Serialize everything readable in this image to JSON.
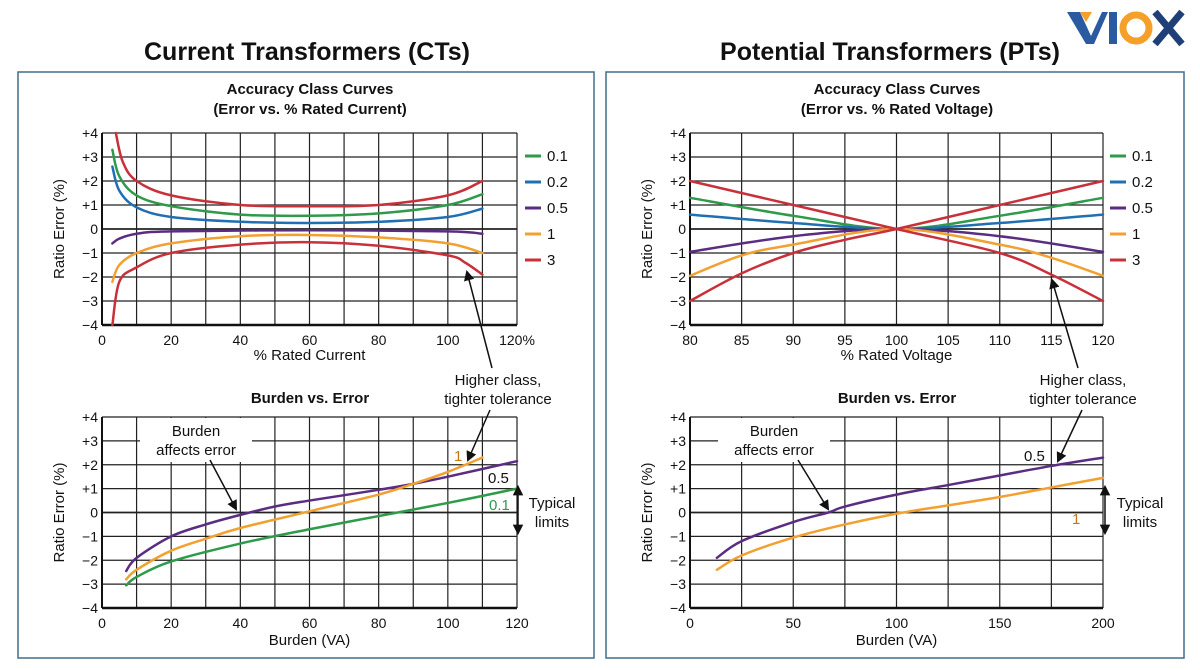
{
  "brand": {
    "logo_text": "VIOX",
    "colors": {
      "blue": "#2a5aa0",
      "orange": "#f5a029",
      "dark": "#1f3f78"
    }
  },
  "panels": [
    {
      "title": "Current Transformers (CTs)"
    },
    {
      "title": "Potential Transformers (PTs)"
    }
  ],
  "colors": {
    "panel_border": "#3f6f8e",
    "grid": "#222222",
    "0.1": "#2e9a4a",
    "0.2": "#1f6fb2",
    "0.5": "#5b2d82",
    "1": "#f2a030",
    "3": "#c8313a"
  },
  "annotations": {
    "ct_higher_class": [
      "Higher class,",
      "tighter tolerance"
    ],
    "ct_burden_affects": [
      "Burden",
      "affects error"
    ],
    "ct_typical_limits": [
      "Typical",
      "limits"
    ],
    "ct_label_1": "1",
    "ct_label_05": "0.5",
    "ct_label_01": "0.1",
    "pt_higher_class": [
      "Higher class,",
      "tighter tolerance"
    ],
    "pt_burden_affects": [
      "Burden",
      "affects error"
    ],
    "pt_typical_limits": [
      "Typical",
      "limits"
    ],
    "pt_label_05": "0.5",
    "pt_label_1": "1"
  },
  "chart_data": [
    {
      "type": "line",
      "title": [
        "Accuracy Class Curves",
        "(Error vs. % Rated Current)"
      ],
      "xlabel": "% Rated Current",
      "ylabel": "Ratio Error (%)",
      "xlim": [
        0,
        120
      ],
      "ylim": [
        -4,
        4
      ],
      "xgrid": 10,
      "ygrid": 1,
      "grid": true,
      "legend": "right",
      "xticks": [
        [
          0,
          "0"
        ],
        [
          20,
          "20"
        ],
        [
          40,
          "40"
        ],
        [
          60,
          "60"
        ],
        [
          80,
          "80"
        ],
        [
          100,
          "100"
        ],
        [
          120,
          "120%"
        ]
      ],
      "yticks": [
        [
          4,
          "+4"
        ],
        [
          3,
          "+3"
        ],
        [
          2,
          "+2"
        ],
        [
          1,
          "+1"
        ],
        [
          0,
          "0"
        ],
        [
          -1,
          "−1"
        ],
        [
          -2,
          "−2"
        ],
        [
          -3,
          "−3"
        ],
        [
          -4,
          "−4"
        ]
      ],
      "series": [
        {
          "name": "0.1",
          "color": "#2e9a4a",
          "curves": [
            [
              [
                3,
                3.3
              ],
              [
                5,
                2.2
              ],
              [
                10,
                1.4
              ],
              [
                20,
                0.95
              ],
              [
                40,
                0.6
              ],
              [
                60,
                0.55
              ],
              [
                80,
                0.65
              ],
              [
                100,
                1.0
              ],
              [
                110,
                1.45
              ]
            ]
          ]
        },
        {
          "name": "0.2",
          "color": "#1f6fb2",
          "curves": [
            [
              [
                3,
                2.6
              ],
              [
                5,
                1.6
              ],
              [
                10,
                0.9
              ],
              [
                20,
                0.5
              ],
              [
                40,
                0.3
              ],
              [
                60,
                0.25
              ],
              [
                80,
                0.3
              ],
              [
                100,
                0.5
              ],
              [
                110,
                0.85
              ]
            ]
          ]
        },
        {
          "name": "0.5",
          "color": "#5b2d82",
          "curves": [
            [
              [
                3,
                -0.6
              ],
              [
                5,
                -0.4
              ],
              [
                10,
                -0.2
              ],
              [
                20,
                -0.1
              ],
              [
                60,
                -0.05
              ],
              [
                100,
                -0.1
              ],
              [
                110,
                -0.2
              ]
            ]
          ]
        },
        {
          "name": "1",
          "color": "#f2a030",
          "curves": [
            [
              [
                3,
                -2.2
              ],
              [
                5,
                -1.5
              ],
              [
                10,
                -1.0
              ],
              [
                20,
                -0.6
              ],
              [
                40,
                -0.3
              ],
              [
                60,
                -0.25
              ],
              [
                80,
                -0.35
              ],
              [
                100,
                -0.6
              ],
              [
                110,
                -1.0
              ]
            ]
          ]
        },
        {
          "name": "3",
          "color": "#c8313a",
          "curves": [
            [
              [
                4,
                4
              ],
              [
                6,
                2.8
              ],
              [
                10,
                2.0
              ],
              [
                20,
                1.4
              ],
              [
                40,
                1.0
              ],
              [
                60,
                0.95
              ],
              [
                80,
                1.0
              ],
              [
                100,
                1.4
              ],
              [
                110,
                2.0
              ]
            ],
            [
              [
                3,
                -4
              ],
              [
                5,
                -2.2
              ],
              [
                10,
                -1.6
              ],
              [
                20,
                -1.0
              ],
              [
                40,
                -0.65
              ],
              [
                60,
                -0.55
              ],
              [
                80,
                -0.7
              ],
              [
                100,
                -1.1
              ],
              [
                105,
                -1.4
              ],
              [
                110,
                -1.9
              ]
            ]
          ]
        }
      ]
    },
    {
      "type": "line",
      "title": [
        "Burden vs. Error"
      ],
      "xlabel": "Burden (VA)",
      "ylabel": "Ratio Error (%)",
      "xlim": [
        0,
        120
      ],
      "ylim": [
        -4,
        4
      ],
      "xgrid": 10,
      "ygrid": 1,
      "grid": true,
      "legend": "none",
      "xticks": [
        [
          0,
          "0"
        ],
        [
          20,
          "20"
        ],
        [
          40,
          "40"
        ],
        [
          60,
          "60"
        ],
        [
          80,
          "80"
        ],
        [
          100,
          "100"
        ],
        [
          120,
          "120"
        ]
      ],
      "yticks": [
        [
          4,
          "+4"
        ],
        [
          3,
          "+3"
        ],
        [
          2,
          "+2"
        ],
        [
          1,
          "+1"
        ],
        [
          0,
          "0"
        ],
        [
          -1,
          "−1"
        ],
        [
          -2,
          "−2"
        ],
        [
          -3,
          "−3"
        ],
        [
          -4,
          "−4"
        ]
      ],
      "series": [
        {
          "name": "0.5",
          "color": "#5b2d82",
          "curves": [
            [
              [
                7,
                -2.45
              ],
              [
                10,
                -1.9
              ],
              [
                20,
                -1.0
              ],
              [
                30,
                -0.5
              ],
              [
                40,
                -0.1
              ],
              [
                50,
                0.25
              ],
              [
                60,
                0.5
              ],
              [
                80,
                0.95
              ],
              [
                90,
                1.2
              ],
              [
                100,
                1.5
              ],
              [
                120,
                2.15
              ]
            ]
          ]
        },
        {
          "name": "1",
          "color": "#f2a030",
          "curves": [
            [
              [
                7,
                -2.8
              ],
              [
                10,
                -2.4
              ],
              [
                20,
                -1.6
              ],
              [
                30,
                -1.1
              ],
              [
                40,
                -0.65
              ],
              [
                60,
                0.05
              ],
              [
                80,
                0.75
              ],
              [
                90,
                1.2
              ],
              [
                100,
                1.7
              ],
              [
                110,
                2.3
              ]
            ]
          ]
        },
        {
          "name": "0.1",
          "color": "#2e9a4a",
          "curves": [
            [
              [
                7,
                -3.05
              ],
              [
                10,
                -2.7
              ],
              [
                20,
                -2.05
              ],
              [
                40,
                -1.3
              ],
              [
                60,
                -0.7
              ],
              [
                80,
                -0.15
              ],
              [
                100,
                0.4
              ],
              [
                120,
                1.0
              ]
            ]
          ]
        }
      ]
    },
    {
      "type": "line",
      "title": [
        "Accuracy Class Curves",
        "(Error vs. % Rated Voltage)"
      ],
      "xlabel": "% Rated Voltage",
      "ylabel": "Ratio Error (%)",
      "xlim": [
        80,
        120
      ],
      "ylim": [
        -4,
        4
      ],
      "xgrid": 5,
      "ygrid": 1,
      "grid": true,
      "legend": "right",
      "xticks": [
        [
          80,
          "80"
        ],
        [
          85,
          "85"
        ],
        [
          90,
          "90"
        ],
        [
          95,
          "95"
        ],
        [
          100,
          "100"
        ],
        [
          105,
          "105"
        ],
        [
          110,
          "110"
        ],
        [
          115,
          "115"
        ],
        [
          120,
          "120"
        ]
      ],
      "yticks": [
        [
          4,
          "+4"
        ],
        [
          3,
          "+3"
        ],
        [
          2,
          "+2"
        ],
        [
          1,
          "+1"
        ],
        [
          0,
          "0"
        ],
        [
          -1,
          "−1"
        ],
        [
          -2,
          "−2"
        ],
        [
          -3,
          "−3"
        ],
        [
          -4,
          "−4"
        ]
      ],
      "series": [
        {
          "name": "0.1",
          "color": "#2e9a4a",
          "curves": [
            [
              [
                80,
                1.3
              ],
              [
                90,
                0.55
              ],
              [
                100,
                0
              ],
              [
                110,
                0.55
              ],
              [
                120,
                1.3
              ]
            ]
          ]
        },
        {
          "name": "0.2",
          "color": "#1f6fb2",
          "curves": [
            [
              [
                80,
                0.6
              ],
              [
                90,
                0.25
              ],
              [
                100,
                0
              ],
              [
                110,
                0.25
              ],
              [
                120,
                0.6
              ]
            ]
          ]
        },
        {
          "name": "0.5",
          "color": "#5b2d82",
          "curves": [
            [
              [
                80,
                -0.95
              ],
              [
                90,
                -0.3
              ],
              [
                100,
                0
              ],
              [
                110,
                -0.3
              ],
              [
                120,
                -0.95
              ]
            ]
          ]
        },
        {
          "name": "1",
          "color": "#f2a030",
          "curves": [
            [
              [
                80,
                -1.95
              ],
              [
                85,
                -1.1
              ],
              [
                90,
                -0.65
              ],
              [
                100,
                0
              ],
              [
                110,
                -0.65
              ],
              [
                115,
                -1.2
              ],
              [
                120,
                -1.95
              ]
            ]
          ]
        },
        {
          "name": "3",
          "color": "#c8313a",
          "curves": [
            [
              [
                80,
                2
              ],
              [
                90,
                1
              ],
              [
                100,
                0
              ],
              [
                110,
                -1
              ],
              [
                115,
                -1.9
              ],
              [
                120,
                -3
              ]
            ],
            [
              [
                80,
                -3
              ],
              [
                85,
                -1.85
              ],
              [
                90,
                -1
              ],
              [
                95,
                -0.45
              ],
              [
                100,
                0
              ],
              [
                110,
                1
              ],
              [
                120,
                2
              ]
            ]
          ]
        }
      ]
    },
    {
      "type": "line",
      "title": [
        "Burden vs. Error"
      ],
      "xlabel": "Burden (VA)",
      "ylabel": "Ratio Error (%)",
      "xlim": [
        0,
        200
      ],
      "ylim": [
        -4,
        4
      ],
      "xgrid": 25,
      "ygrid": 1,
      "grid": true,
      "legend": "none",
      "xticks": [
        [
          0,
          "0"
        ],
        [
          50,
          "50"
        ],
        [
          100,
          "100"
        ],
        [
          150,
          "150"
        ],
        [
          200,
          "200"
        ]
      ],
      "yticks": [
        [
          4,
          "+4"
        ],
        [
          3,
          "+3"
        ],
        [
          2,
          "+2"
        ],
        [
          1,
          "+1"
        ],
        [
          0,
          "0"
        ],
        [
          -1,
          "−1"
        ],
        [
          -2,
          "−2"
        ],
        [
          -3,
          "−3"
        ],
        [
          -4,
          "−4"
        ]
      ],
      "series": [
        {
          "name": "0.5",
          "color": "#5b2d82",
          "curves": [
            [
              [
                13,
                -1.9
              ],
              [
                25,
                -1.2
              ],
              [
                50,
                -0.4
              ],
              [
                67,
                0
              ],
              [
                75,
                0.25
              ],
              [
                100,
                0.75
              ],
              [
                125,
                1.15
              ],
              [
                150,
                1.55
              ],
              [
                175,
                1.95
              ],
              [
                200,
                2.3
              ]
            ]
          ]
        },
        {
          "name": "1",
          "color": "#f2a030",
          "curves": [
            [
              [
                13,
                -2.4
              ],
              [
                25,
                -1.8
              ],
              [
                50,
                -1.05
              ],
              [
                75,
                -0.5
              ],
              [
                100,
                -0.05
              ],
              [
                125,
                0.3
              ],
              [
                150,
                0.65
              ],
              [
                175,
                1.05
              ],
              [
                200,
                1.45
              ]
            ]
          ]
        }
      ]
    }
  ]
}
